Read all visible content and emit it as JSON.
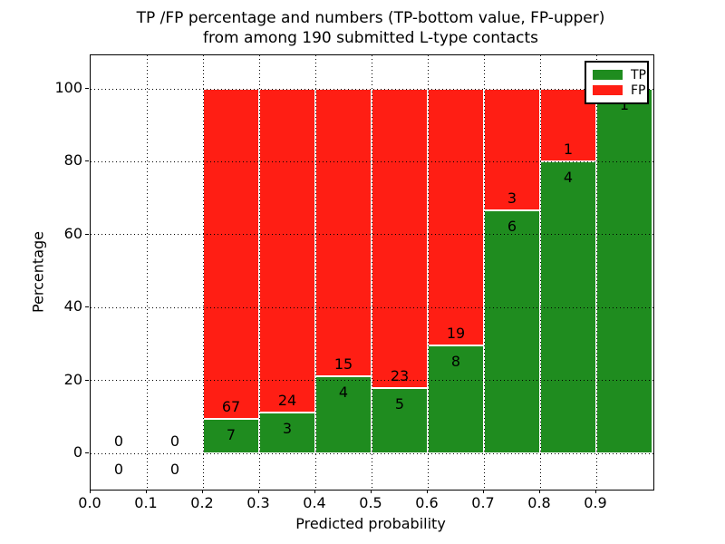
{
  "chart_data": {
    "type": "bar",
    "stacked": true,
    "normalized_to_percent": true,
    "title_line1": "TP /FP percentage and numbers (TP-bottom value, FP-upper)",
    "title_line2": "from among 190 submitted L-type contacts",
    "xlabel": "Predicted probability",
    "ylabel": "Percentage",
    "x_ticks": [
      "0.0",
      "0.1",
      "0.2",
      "0.3",
      "0.4",
      "0.5",
      "0.6",
      "0.7",
      "0.8",
      "0.9"
    ],
    "y_ticks": [
      "0",
      "20",
      "40",
      "60",
      "80",
      "100"
    ],
    "xlim": [
      0.0,
      1.003
    ],
    "ylim": [
      -9.95,
      109.2
    ],
    "grid": "dotted-black-on",
    "total_submitted": 190,
    "legend": {
      "position": "upper right",
      "items": [
        {
          "label": "TP",
          "color": "#1f8c1f"
        },
        {
          "label": "FP",
          "color": "#ff1e14"
        }
      ]
    },
    "colors": {
      "tp": "#1f8c1f",
      "fp": "#ff1e14",
      "grid": "#000000",
      "bar_edge": "#ffffff"
    },
    "bins": [
      {
        "range": [
          0.0,
          0.1
        ],
        "tp": 0,
        "fp": 0
      },
      {
        "range": [
          0.1,
          0.2
        ],
        "tp": 0,
        "fp": 0
      },
      {
        "range": [
          0.2,
          0.3
        ],
        "tp": 7,
        "fp": 67
      },
      {
        "range": [
          0.3,
          0.4
        ],
        "tp": 3,
        "fp": 24
      },
      {
        "range": [
          0.4,
          0.5
        ],
        "tp": 4,
        "fp": 15
      },
      {
        "range": [
          0.5,
          0.6
        ],
        "tp": 5,
        "fp": 23
      },
      {
        "range": [
          0.6,
          0.7
        ],
        "tp": 8,
        "fp": 19
      },
      {
        "range": [
          0.7,
          0.8
        ],
        "tp": 6,
        "fp": 3
      },
      {
        "range": [
          0.8,
          0.9
        ],
        "tp": 4,
        "fp": 1
      },
      {
        "range": [
          0.9,
          1.0
        ],
        "tp": 1,
        "fp": 0
      }
    ]
  }
}
